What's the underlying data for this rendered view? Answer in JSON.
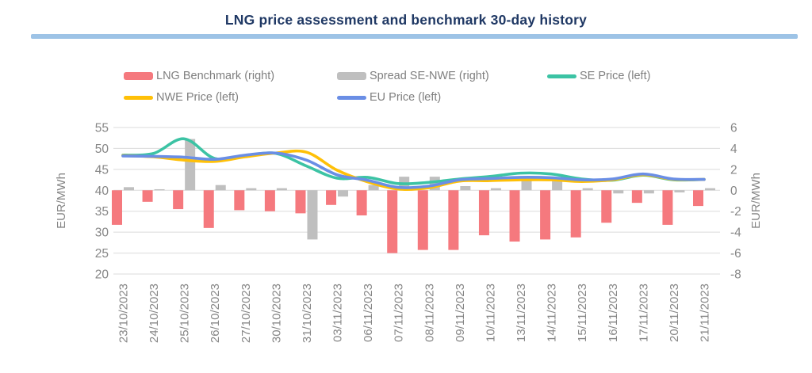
{
  "title": "LNG price assessment and benchmark 30-day history",
  "title_color": "#1F3864",
  "title_rule_color": "#9DC3E6",
  "text_color": "#868686",
  "grid_color": "#DBDBDB",
  "legend": {
    "items": [
      {
        "label": "LNG Benchmark (right)",
        "color": "#F5797E",
        "shape": "bar"
      },
      {
        "label": "Spread SE-NWE (right)",
        "color": "#BFBFBF",
        "shape": "bar"
      },
      {
        "label": "SE Price (left)",
        "color": "#3CC3A4",
        "shape": "line"
      },
      {
        "label": "NWE Price (left)",
        "color": "#FFC007",
        "shape": "line"
      },
      {
        "label": "EU Price (left)",
        "color": "#6A8EE5",
        "shape": "line"
      }
    ]
  },
  "chart_data": {
    "type": "combo",
    "grid": true,
    "legend_position": "top",
    "categories": [
      "23/10/2023",
      "24/10/2023",
      "25/10/2023",
      "26/10/2023",
      "27/10/2023",
      "30/10/2023",
      "31/10/2023",
      "03/11/2023",
      "06/11/2023",
      "07/11/2023",
      "08/11/2023",
      "09/11/2023",
      "10/11/2023",
      "13/11/2023",
      "14/11/2023",
      "15/11/2023",
      "16/11/2023",
      "17/11/2023",
      "20/11/2023",
      "21/11/2023"
    ],
    "series": [
      {
        "name": "LNG Benchmark (right)",
        "kind": "bar",
        "axis": "right",
        "color": "#F5797E",
        "values": [
          -3.3,
          -1.1,
          -1.8,
          -3.6,
          -1.9,
          -2.0,
          -2.2,
          -1.4,
          -2.4,
          -6.0,
          -5.7,
          -5.7,
          -4.3,
          -4.9,
          -4.7,
          -4.5,
          -3.1,
          -1.2,
          -3.3,
          -1.5
        ]
      },
      {
        "name": "Spread SE-NWE (right)",
        "kind": "bar",
        "axis": "right",
        "color": "#BFBFBF",
        "values": [
          0.3,
          0.1,
          4.9,
          0.5,
          0.2,
          0.2,
          -4.7,
          -0.6,
          0.5,
          1.3,
          1.3,
          0.4,
          0.2,
          0.9,
          0.9,
          0.2,
          -0.3,
          -0.3,
          -0.2,
          0.2
        ]
      },
      {
        "name": "SE Price (left)",
        "kind": "line",
        "axis": "left",
        "color": "#3CC3A4",
        "values": [
          48.4,
          48.8,
          52.3,
          47.6,
          48.3,
          48.8,
          45.8,
          42.9,
          43.1,
          41.6,
          41.9,
          42.7,
          43.3,
          44.1,
          43.9,
          42.7,
          42.4,
          43.6,
          42.5,
          42.6
        ]
      },
      {
        "name": "NWE Price (left)",
        "kind": "line",
        "axis": "left",
        "color": "#FFC007",
        "values": [
          48.3,
          48.0,
          47.2,
          46.9,
          48.0,
          48.9,
          49.1,
          44.8,
          42.0,
          40.3,
          40.6,
          42.2,
          42.3,
          42.5,
          42.5,
          42.1,
          42.5,
          43.7,
          42.6,
          42.6
        ]
      },
      {
        "name": "EU Price (left)",
        "kind": "line",
        "axis": "left",
        "color": "#6A8EE5",
        "values": [
          48.2,
          48.1,
          47.9,
          47.4,
          48.4,
          48.9,
          47.2,
          43.7,
          42.4,
          40.7,
          41.0,
          42.5,
          42.8,
          43.1,
          43.0,
          42.5,
          42.7,
          43.9,
          42.7,
          42.6
        ]
      }
    ],
    "left_axis": {
      "label": "EUR/MWh",
      "min": 20,
      "max": 55,
      "ticks": [
        55,
        50,
        45,
        40,
        35,
        30,
        25,
        20
      ]
    },
    "right_axis": {
      "label": "EUR/MWh",
      "min": -8,
      "max": 6,
      "ticks": [
        6,
        4,
        2,
        0,
        -2,
        -4,
        -6,
        -8
      ]
    }
  }
}
